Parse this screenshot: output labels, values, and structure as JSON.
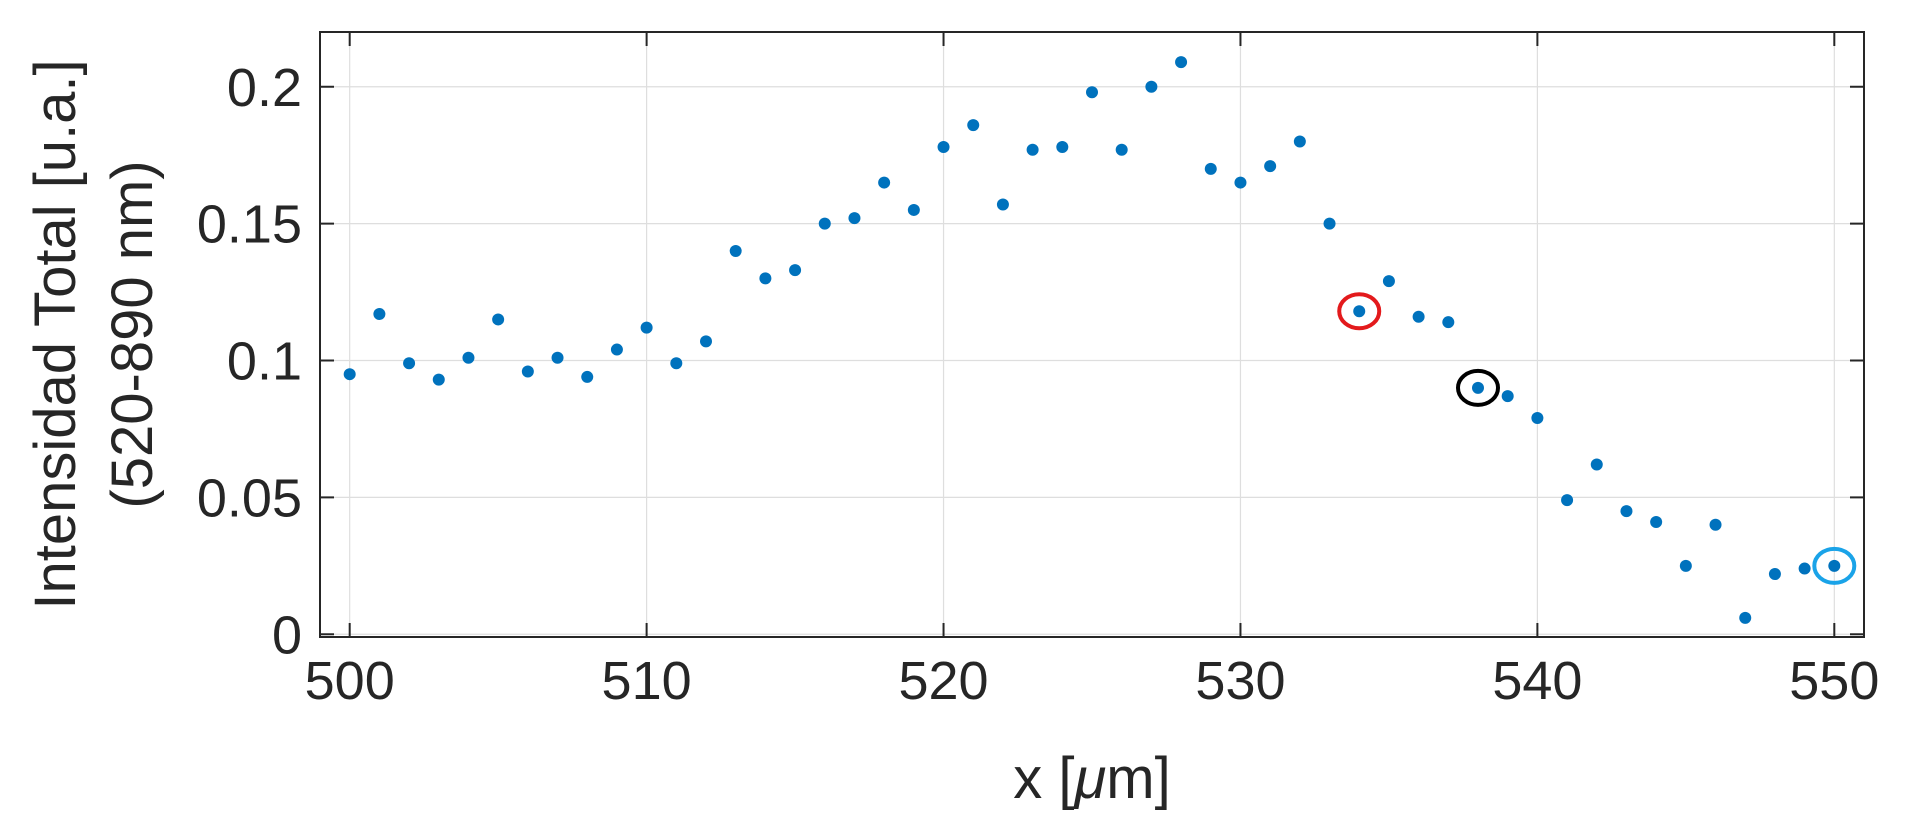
{
  "chart_data": {
    "type": "scatter",
    "title": "",
    "xlabel_prefix": "x [",
    "xlabel_mu": "μ",
    "xlabel_suffix": "m]",
    "ylabel_line1": "Intensidad Total [u.a.]",
    "ylabel_line2": "(520-890 nm)",
    "xlim": [
      499,
      551
    ],
    "ylim": [
      -0.001,
      0.22
    ],
    "grid": true,
    "xticks": [
      500,
      510,
      520,
      530,
      540,
      550
    ],
    "xtick_labels": [
      "500",
      "510",
      "520",
      "530",
      "540",
      "550"
    ],
    "yticks": [
      0,
      0.05,
      0.1,
      0.15,
      0.2
    ],
    "ytick_labels": [
      "0",
      "0.05",
      "0.1",
      "0.15",
      "0.2"
    ],
    "marker_color": "#0072BD",
    "x": [
      500,
      501,
      502,
      503,
      504,
      505,
      506,
      507,
      508,
      509,
      510,
      511,
      512,
      513,
      514,
      515,
      516,
      517,
      518,
      519,
      520,
      521,
      522,
      523,
      524,
      525,
      526,
      527,
      528,
      529,
      530,
      531,
      532,
      533,
      534,
      535,
      536,
      537,
      538,
      539,
      540,
      541,
      542,
      543,
      544,
      545,
      546,
      547,
      548,
      549,
      550
    ],
    "y": [
      0.095,
      0.117,
      0.099,
      0.093,
      0.101,
      0.115,
      0.096,
      0.101,
      0.094,
      0.104,
      0.112,
      0.099,
      0.107,
      0.14,
      0.13,
      0.133,
      0.15,
      0.152,
      0.165,
      0.155,
      0.178,
      0.186,
      0.157,
      0.177,
      0.178,
      0.198,
      0.177,
      0.2,
      0.209,
      0.17,
      0.165,
      0.171,
      0.18,
      0.15,
      0.118,
      0.129,
      0.116,
      0.114,
      0.09,
      0.087,
      0.079,
      0.049,
      0.062,
      0.045,
      0.041,
      0.025,
      0.04,
      0.006,
      0.022,
      0.024,
      0.025
    ],
    "highlights": [
      {
        "x": 534,
        "y": 0.118,
        "color": "#E31A1C"
      },
      {
        "x": 538,
        "y": 0.09,
        "color": "#000000"
      },
      {
        "x": 550,
        "y": 0.025,
        "color": "#1AA3E8"
      }
    ]
  }
}
